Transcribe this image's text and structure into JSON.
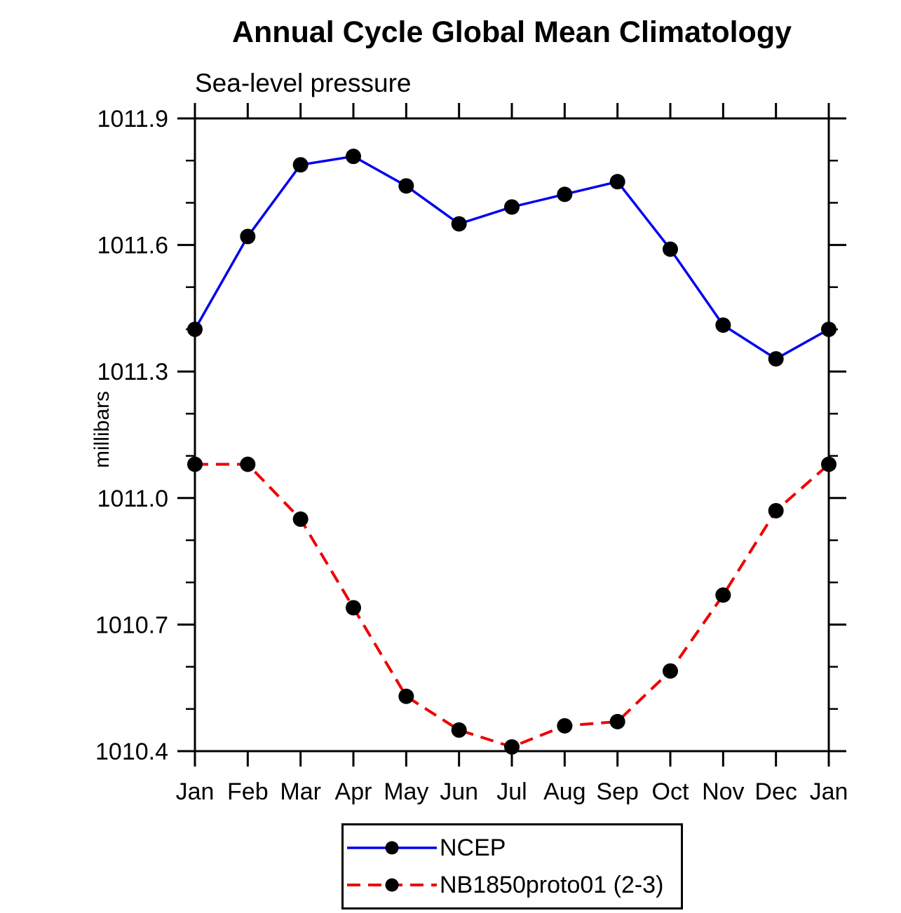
{
  "chart": {
    "title": "Annual Cycle Global Mean Climatology",
    "subtitle": "Sea-level pressure",
    "ylabel": "millibars"
  },
  "chart_data": {
    "type": "line",
    "categories": [
      "Jan",
      "Feb",
      "Mar",
      "Apr",
      "May",
      "Jun",
      "Jul",
      "Aug",
      "Sep",
      "Oct",
      "Nov",
      "Dec",
      "Jan"
    ],
    "series": [
      {
        "name": "NCEP",
        "color": "#0000ee",
        "line_style": "solid",
        "marker": "filled-circle",
        "marker_color": "#000000",
        "values": [
          1011.4,
          1011.62,
          1011.79,
          1011.81,
          1011.74,
          1011.65,
          1011.69,
          1011.72,
          1011.75,
          1011.59,
          1011.41,
          1011.33,
          1011.4
        ]
      },
      {
        "name": "NB1850proto01 (2-3)",
        "color": "#ee0000",
        "line_style": "dashed",
        "marker": "filled-circle",
        "marker_color": "#000000",
        "values": [
          1011.08,
          1011.08,
          1010.95,
          1010.74,
          1010.53,
          1010.45,
          1010.41,
          1010.46,
          1010.47,
          1010.59,
          1010.77,
          1010.97,
          1011.08
        ]
      }
    ],
    "title": "Annual Cycle Global Mean Climatology",
    "subtitle": "Sea-level pressure",
    "xlabel": "",
    "ylabel": "millibars",
    "ylim": [
      1010.4,
      1011.9
    ],
    "ytick_major": [
      1011.9,
      1011.6,
      1011.3,
      1011.0,
      1010.7,
      1010.4
    ],
    "ytick_minor_step": 0.1,
    "grid": false,
    "legend_position": "bottom-center",
    "frame": "box-with-outward-ticks"
  }
}
